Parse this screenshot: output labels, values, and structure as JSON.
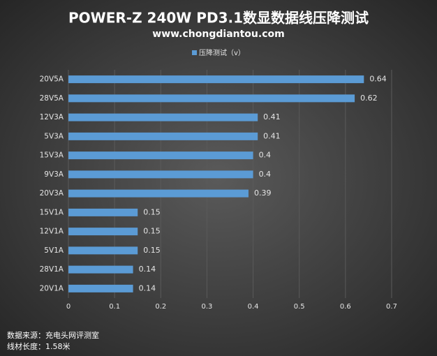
{
  "chart_data": {
    "type": "hbar",
    "title": "POWER-Z 240W PD3.1数显数据线压降测试",
    "subtitle": "www.chongdiantou.com",
    "categories": [
      "20V5A",
      "28V5A",
      "12V3A",
      "5V3A",
      "15V3A",
      "9V3A",
      "20V3A",
      "15V1A",
      "12V1A",
      "5V1A",
      "28V1A",
      "20V1A"
    ],
    "series": [
      {
        "name": "压降测试（v）",
        "color": "#5b9bd5",
        "values": [
          0.64,
          0.62,
          0.41,
          0.41,
          0.4,
          0.4,
          0.39,
          0.15,
          0.15,
          0.15,
          0.14,
          0.14
        ]
      }
    ],
    "xlim": [
      0,
      0.7
    ],
    "xticks": [
      0,
      0.1,
      0.2,
      0.3,
      0.4,
      0.5,
      0.6,
      0.7
    ],
    "grid": true,
    "legend": "top",
    "notes": [
      "数据来源：充电头网评测室",
      "线材长度：1.58米"
    ]
  }
}
